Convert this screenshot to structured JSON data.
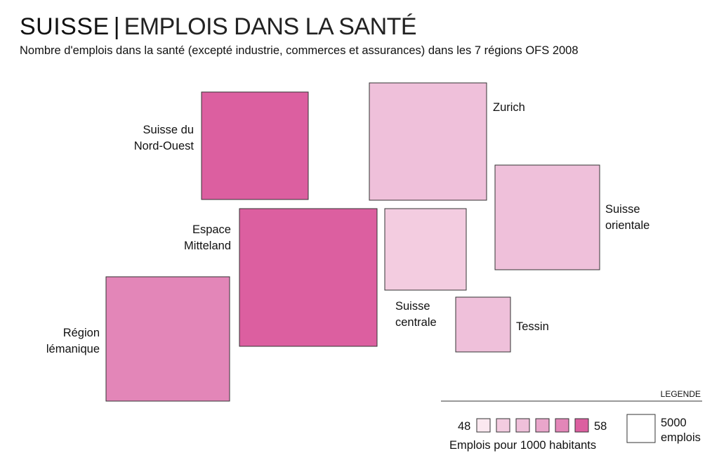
{
  "header": {
    "title_strong": "SUISSE",
    "title_separator": "|",
    "title_light": "EMPLOIS DANS LA SANTÉ",
    "subtitle": "Nombre d'emplois dans la santé (excepté industrie, commerces et assurances) dans les 7 régions OFS 2008"
  },
  "chart_data": {
    "type": "cartogram",
    "regions": [
      {
        "id": "nord-ouest",
        "label_lines": [
          "Suisse du",
          "Nord-Ouest"
        ],
        "color_class": 5
      },
      {
        "id": "zurich",
        "label_lines": [
          "Zurich"
        ],
        "color_class": 2
      },
      {
        "id": "suisse-orientale",
        "label_lines": [
          "Suisse",
          "orientale"
        ],
        "color_class": 2
      },
      {
        "id": "espace-mittelland",
        "label_lines": [
          "Espace",
          "Mitteland"
        ],
        "color_class": 5
      },
      {
        "id": "suisse-centrale",
        "label_lines": [
          "Suisse",
          "centrale"
        ],
        "color_class": 1
      },
      {
        "id": "tessin",
        "label_lines": [
          "Tessin"
        ],
        "color_class": 2
      },
      {
        "id": "region-lemanique",
        "label_lines": [
          "Région",
          "lémanique"
        ],
        "color_class": 4
      }
    ],
    "legend": {
      "heading": "LEGENDE",
      "scale_min": "48",
      "scale_max": "58",
      "scale_label": "Emplois pour 1000 habitants",
      "colors": [
        "#fbe8f0",
        "#f3cce0",
        "#efc0da",
        "#e9a6cb",
        "#e386b8",
        "#dc5fa0"
      ],
      "size_label_lines": [
        "5000",
        "emplois"
      ]
    }
  }
}
